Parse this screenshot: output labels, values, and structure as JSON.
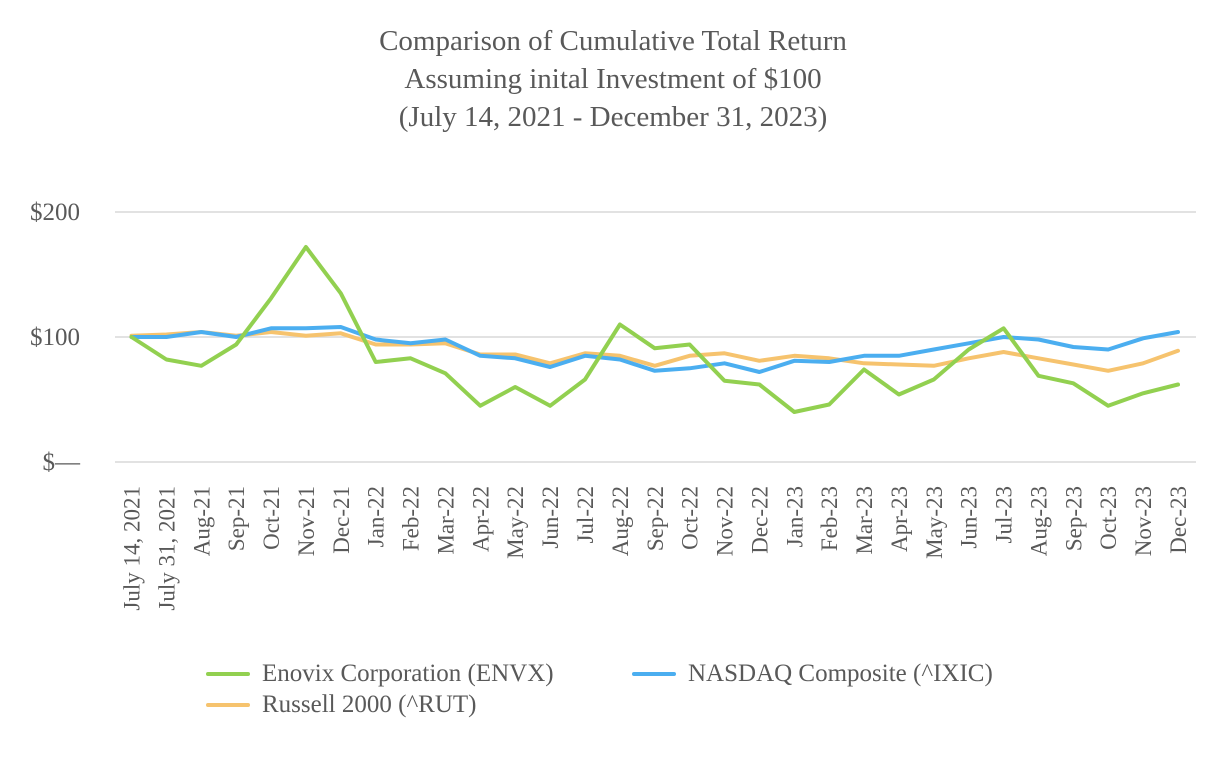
{
  "chart_data": {
    "type": "line",
    "title": [
      "Comparison of Cumulative Total Return",
      "Assuming inital Investment of $100",
      "(July 14, 2021 - December 31, 2023)"
    ],
    "xlabel": "",
    "ylabel": "",
    "ylim": [
      0,
      200
    ],
    "yticks": [
      0,
      100,
      200
    ],
    "ytick_labels": [
      "$—",
      "$100",
      "$200"
    ],
    "categories": [
      "July 14, 2021",
      "July 31, 2021",
      "Aug-21",
      "Sep-21",
      "Oct-21",
      "Nov-21",
      "Dec-21",
      "Jan-22",
      "Feb-22",
      "Mar-22",
      "Apr-22",
      "May-22",
      "Jun-22",
      "Jul-22",
      "Aug-22",
      "Sep-22",
      "Oct-22",
      "Nov-22",
      "Dec-22",
      "Jan-23",
      "Feb-23",
      "Mar-23",
      "Apr-23",
      "May-23",
      "Jun-23",
      "Jul-23",
      "Aug-23",
      "Sep-23",
      "Oct-23",
      "Nov-23",
      "Dec-23"
    ],
    "grid": "horizontal",
    "legend_position": "bottom",
    "series": [
      {
        "name": "Enovix Corporation (ENVX)",
        "color": "#92d050",
        "values": [
          100,
          82,
          77,
          94,
          131,
          172,
          135,
          80,
          83,
          71,
          45,
          60,
          45,
          66,
          110,
          91,
          94,
          65,
          62,
          40,
          46,
          74,
          54,
          66,
          90,
          107,
          69,
          63,
          45,
          55,
          62
        ]
      },
      {
        "name": "NASDAQ Composite (^IXIC)",
        "color": "#4baef0",
        "values": [
          100,
          100,
          104,
          100,
          107,
          107,
          108,
          98,
          95,
          98,
          85,
          83,
          76,
          85,
          82,
          73,
          75,
          79,
          72,
          81,
          80,
          85,
          85,
          90,
          95,
          100,
          98,
          92,
          90,
          99,
          104
        ]
      },
      {
        "name": "Russell 2000 (^RUT)",
        "color": "#f6c36e",
        "values": [
          101,
          102,
          104,
          101,
          104,
          101,
          103,
          94,
          94,
          95,
          86,
          86,
          79,
          87,
          85,
          77,
          85,
          87,
          81,
          85,
          83,
          79,
          78,
          77,
          83,
          88,
          83,
          78,
          73,
          79,
          89
        ]
      }
    ]
  }
}
